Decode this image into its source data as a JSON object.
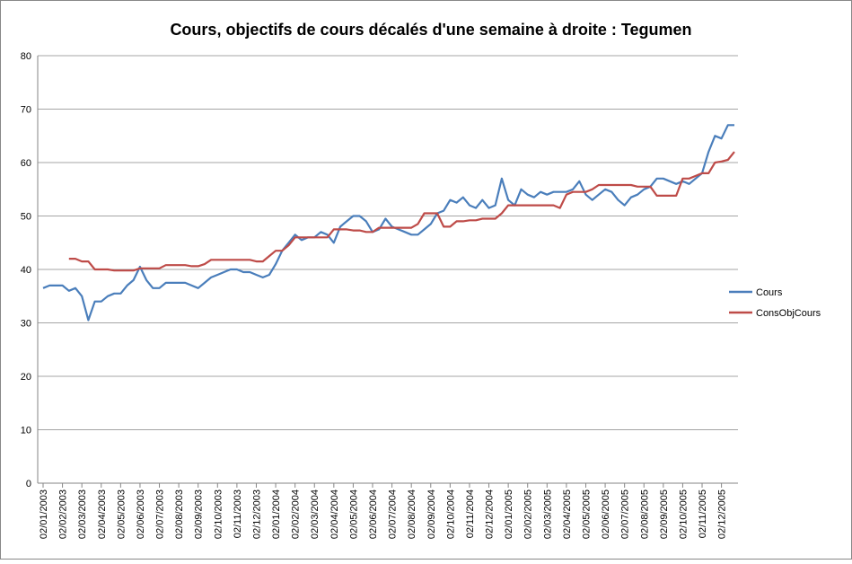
{
  "chart_data": {
    "type": "line",
    "title": "Cours, objectifs de cours décalés d'une semaine à droite : Tegumen",
    "categories": [
      "02/01/2003",
      null,
      null,
      "02/02/2003",
      null,
      null,
      "02/03/2003",
      null,
      null,
      "02/04/2003",
      null,
      null,
      "02/05/2003",
      null,
      null,
      "02/06/2003",
      null,
      null,
      "02/07/2003",
      null,
      null,
      "02/08/2003",
      null,
      null,
      "02/09/2003",
      null,
      null,
      "02/10/2003",
      null,
      null,
      "02/11/2003",
      null,
      null,
      "02/12/2003",
      null,
      null,
      "02/01/2004",
      null,
      null,
      "02/02/2004",
      null,
      null,
      "02/03/2004",
      null,
      null,
      "02/04/2004",
      null,
      null,
      "02/05/2004",
      null,
      null,
      "02/06/2004",
      null,
      null,
      "02/07/2004",
      null,
      null,
      "02/08/2004",
      null,
      null,
      "02/09/2004",
      null,
      null,
      "02/10/2004",
      null,
      null,
      "02/11/2004",
      null,
      null,
      "02/12/2004",
      null,
      null,
      "02/01/2005",
      null,
      null,
      "02/02/2005",
      null,
      null,
      "02/03/2005",
      null,
      null,
      "02/04/2005",
      null,
      null,
      "02/05/2005",
      null,
      null,
      "02/06/2005",
      null,
      null,
      "02/07/2005",
      null,
      null,
      "02/08/2005",
      null,
      null,
      "02/09/2005",
      null,
      null,
      "02/10/2005",
      null,
      null,
      "02/11/2005",
      null,
      null,
      "02/12/2005",
      null,
      null
    ],
    "series": [
      {
        "name": "Cours",
        "color": "#4a7ebb",
        "values": [
          36.5,
          37,
          37,
          37,
          36,
          36.5,
          35,
          30.5,
          34,
          34,
          35,
          35.5,
          35.5,
          37,
          38,
          40.5,
          38,
          36.5,
          36.5,
          37.5,
          37.5,
          37.5,
          37.5,
          37,
          36.5,
          37.5,
          38.5,
          39,
          39.5,
          40,
          40,
          39.5,
          39.5,
          39,
          38.5,
          39,
          41,
          43.5,
          45,
          46.5,
          45.5,
          46,
          46,
          47,
          46.5,
          45,
          48,
          49,
          50,
          50,
          49,
          47,
          47.5,
          49.5,
          48,
          47.5,
          47,
          46.5,
          46.5,
          47.5,
          48.5,
          50.5,
          51,
          53,
          52.5,
          53.5,
          52,
          51.5,
          53,
          51.5,
          52,
          57,
          53,
          52,
          55,
          54,
          53.5,
          54.5,
          54,
          54.5,
          54.5,
          54.5,
          55,
          56.5,
          54,
          53,
          54,
          55,
          54.5,
          53,
          52,
          53.5,
          54,
          55,
          55.5,
          57,
          57,
          56.5,
          56,
          56.5,
          56,
          57,
          58,
          62,
          65,
          64.5,
          67,
          67
        ]
      },
      {
        "name": "ConsObjCours",
        "color": "#be4b48",
        "values": [
          null,
          null,
          null,
          null,
          42,
          42,
          41.5,
          41.5,
          40,
          40,
          40,
          39.8,
          39.8,
          39.8,
          39.8,
          40.2,
          40.2,
          40.2,
          40.2,
          40.8,
          40.8,
          40.8,
          40.8,
          40.6,
          40.6,
          41,
          41.8,
          41.8,
          41.8,
          41.8,
          41.8,
          41.8,
          41.8,
          41.5,
          41.5,
          42.5,
          43.5,
          43.5,
          44.5,
          46,
          46,
          46,
          46,
          46,
          46,
          47.5,
          47.5,
          47.5,
          47.3,
          47.3,
          47,
          47,
          47.8,
          47.8,
          47.8,
          47.8,
          47.8,
          47.8,
          48.5,
          50.5,
          50.5,
          50.5,
          48,
          48,
          49,
          49,
          49.2,
          49.2,
          49.5,
          49.5,
          49.5,
          50.5,
          52,
          52,
          52,
          52,
          52,
          52,
          52,
          52,
          51.5,
          54,
          54.5,
          54.5,
          54.5,
          55,
          55.8,
          55.8,
          55.8,
          55.8,
          55.8,
          55.8,
          55.5,
          55.5,
          55.5,
          53.8,
          53.8,
          53.8,
          53.8,
          57,
          57,
          57.5,
          58,
          58,
          60,
          60.2,
          60.5,
          62
        ]
      }
    ],
    "ylim": [
      0,
      80
    ],
    "yticks": [
      0,
      10,
      20,
      30,
      40,
      50,
      60,
      70,
      80
    ],
    "grid": true,
    "legend": "right"
  }
}
